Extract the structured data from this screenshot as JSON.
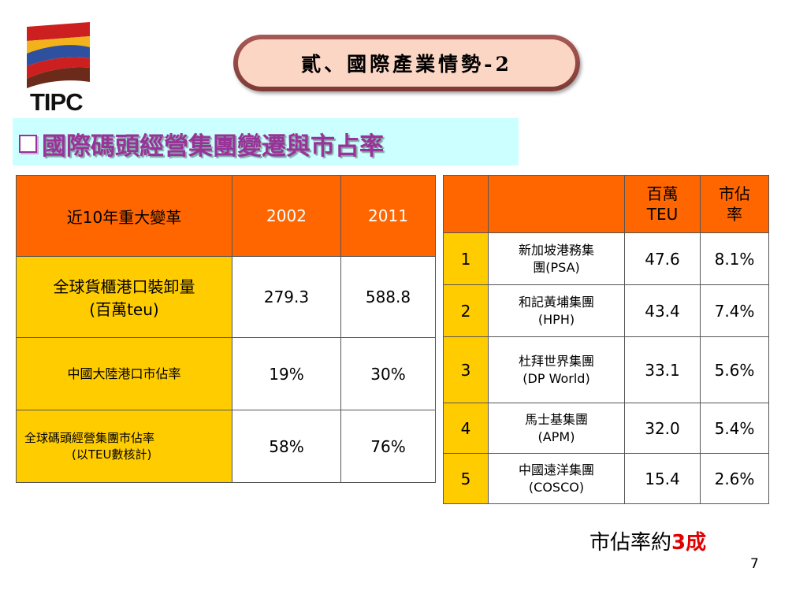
{
  "logo": {
    "text": "TIPC"
  },
  "title": {
    "text": "貳、國際產業情勢-2"
  },
  "section": {
    "text": "國際碼頭經營集團變遷與市占率"
  },
  "left_table": {
    "header": [
      "近10年重大變革",
      "2002",
      "2011"
    ],
    "rows": [
      {
        "label_line1": "全球貨櫃港口裝卸量",
        "label_line2": "(百萬teu)",
        "v2002": "279.3",
        "v2011": "588.8"
      },
      {
        "label_line1": "中國大陸港口市佔率",
        "label_line2": "",
        "v2002": "19%",
        "v2011": "30%"
      },
      {
        "label_line1": "全球碼頭經營集團市佔率",
        "label_line2": "(以TEU數核計)",
        "v2002": "58%",
        "v2011": "76%"
      }
    ]
  },
  "right_table": {
    "header": [
      "",
      "",
      "百萬\nTEU",
      "市佔\n率"
    ],
    "header_teu_1": "百萬",
    "header_teu_2": "TEU",
    "header_share_1": "市佔",
    "header_share_2": "率",
    "rows": [
      {
        "rank": "1",
        "name1": "新加坡港務集",
        "name2": "團(PSA)",
        "teu": "47.6",
        "share": "8.1%"
      },
      {
        "rank": "2",
        "name1": "和記黃埔集團",
        "name2": "(HPH)",
        "teu": "43.4",
        "share": "7.4%"
      },
      {
        "rank": "3",
        "name1": "杜拜世界集團",
        "name2": "(DP World)",
        "teu": "33.1",
        "share": "5.6%"
      },
      {
        "rank": "4",
        "name1": "馬士基集團",
        "name2": "(APM)",
        "teu": "32.0",
        "share": "5.4%"
      },
      {
        "rank": "5",
        "name1": "中國遠洋集團",
        "name2": "(COSCO)",
        "teu": "15.4",
        "share": "2.6%"
      }
    ]
  },
  "note": {
    "prefix": "市佔率約",
    "highlight": "3成"
  },
  "page_number": "7",
  "colors": {
    "orange": "#ff6600",
    "gold": "#ffcc00",
    "cyan": "#ccffff",
    "purple": "#993399",
    "red": "#e00000"
  }
}
